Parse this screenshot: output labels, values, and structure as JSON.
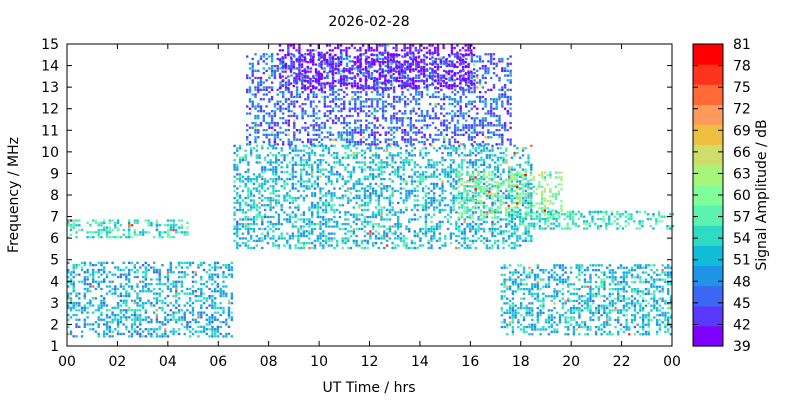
{
  "chart_data": {
    "type": "heatmap",
    "title": "2026-02-28",
    "xlabel": "UT Time / hrs",
    "ylabel": "Frequency / MHz",
    "colorbar_label": "Signal Amplitude / dB",
    "xlim": [
      0,
      24
    ],
    "ylim": [
      1,
      15
    ],
    "x_ticks": [
      "00",
      "02",
      "04",
      "06",
      "08",
      "10",
      "12",
      "14",
      "16",
      "18",
      "20",
      "22",
      "00"
    ],
    "y_ticks": [
      "1",
      "2",
      "3",
      "4",
      "5",
      "6",
      "7",
      "8",
      "9",
      "10",
      "11",
      "12",
      "13",
      "14",
      "15"
    ],
    "colorbar_range": [
      39,
      81
    ],
    "colorbar_ticks": [
      "39",
      "42",
      "45",
      "48",
      "51",
      "54",
      "57",
      "60",
      "63",
      "66",
      "69",
      "72",
      "75",
      "78",
      "81"
    ],
    "colormap": [
      "#8000ff",
      "#5a38fc",
      "#3c67f4",
      "#1e94e6",
      "#10bcd8",
      "#30dbc4",
      "#5cf2b0",
      "#80fe97",
      "#a8f57c",
      "#cfde68",
      "#efc03f",
      "#ff9a5a",
      "#ff6a36",
      "#ff3319",
      "#ff0000"
    ],
    "grid": false,
    "regions": [
      {
        "name": "nighttime low band (pre-dawn)",
        "x": [
          0,
          6.6
        ],
        "y": [
          1.5,
          5.0
        ],
        "amplitude_db": 51
      },
      {
        "name": "nighttime ~6.7 MHz line",
        "x": [
          0,
          4.8
        ],
        "y": [
          6.1,
          6.9
        ],
        "amplitude_db": 55
      },
      {
        "name": "daytime broad band",
        "x": [
          6.6,
          18.4
        ],
        "y": [
          5.6,
          10.4
        ],
        "amplitude_db": 52
      },
      {
        "name": "daytime upper band",
        "x": [
          7.1,
          17.6
        ],
        "y": [
          10.4,
          14.6
        ],
        "amplitude_db": 46
      },
      {
        "name": "daytime top edge",
        "x": [
          8.4,
          16.2
        ],
        "y": [
          13.0,
          15.0
        ],
        "amplitude_db": 40
      },
      {
        "name": "evening ~8 MHz band",
        "x": [
          15.5,
          19.6
        ],
        "y": [
          7.0,
          9.1
        ],
        "amplitude_db": 60
      },
      {
        "name": "nighttime low band (evening)",
        "x": [
          17.2,
          24
        ],
        "y": [
          1.6,
          4.9
        ],
        "amplitude_db": 52
      },
      {
        "name": "evening ~7 MHz line",
        "x": [
          17.5,
          24
        ],
        "y": [
          6.5,
          7.3
        ],
        "amplitude_db": 55
      }
    ]
  }
}
